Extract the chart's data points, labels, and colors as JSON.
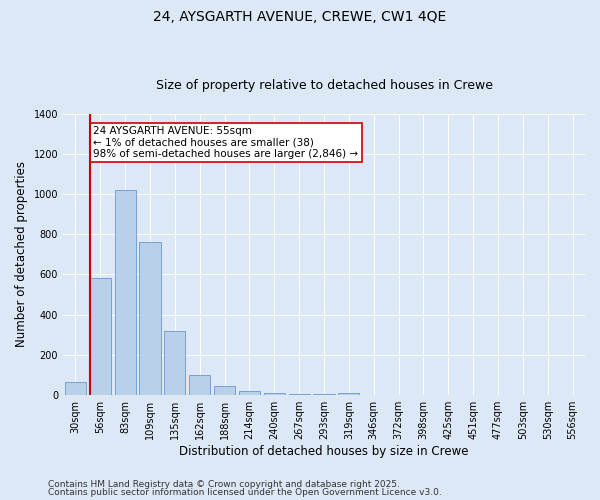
{
  "title_line1": "24, AYSGARTH AVENUE, CREWE, CW1 4QE",
  "title_line2": "Size of property relative to detached houses in Crewe",
  "xlabel": "Distribution of detached houses by size in Crewe",
  "ylabel": "Number of detached properties",
  "categories": [
    "30sqm",
    "56sqm",
    "83sqm",
    "109sqm",
    "135sqm",
    "162sqm",
    "188sqm",
    "214sqm",
    "240sqm",
    "267sqm",
    "293sqm",
    "319sqm",
    "346sqm",
    "372sqm",
    "398sqm",
    "425sqm",
    "451sqm",
    "477sqm",
    "503sqm",
    "530sqm",
    "556sqm"
  ],
  "values": [
    65,
    580,
    1020,
    760,
    320,
    100,
    45,
    20,
    10,
    5,
    2,
    10,
    0,
    0,
    0,
    0,
    0,
    0,
    0,
    0,
    0
  ],
  "bar_color": "#b8d0e8",
  "bar_edge_color": "#6699cc",
  "red_line_x": 1,
  "red_line_color": "#cc0000",
  "annotation_text": "24 AYSGARTH AVENUE: 55sqm\n← 1% of detached houses are smaller (38)\n98% of semi-detached houses are larger (2,846) →",
  "annotation_box_color": "#ffffff",
  "annotation_box_edge": "#cc0000",
  "ylim": [
    0,
    1400
  ],
  "yticks": [
    0,
    200,
    400,
    600,
    800,
    1000,
    1200,
    1400
  ],
  "bg_color": "#dce8f5",
  "plot_bg_color": "#dce8f5",
  "footer_line1": "Contains HM Land Registry data © Crown copyright and database right 2025.",
  "footer_line2": "Contains public sector information licensed under the Open Government Licence v3.0.",
  "title_fontsize": 10,
  "subtitle_fontsize": 9,
  "axis_label_fontsize": 8.5,
  "tick_fontsize": 7,
  "annotation_fontsize": 7.5,
  "footer_fontsize": 6.5
}
